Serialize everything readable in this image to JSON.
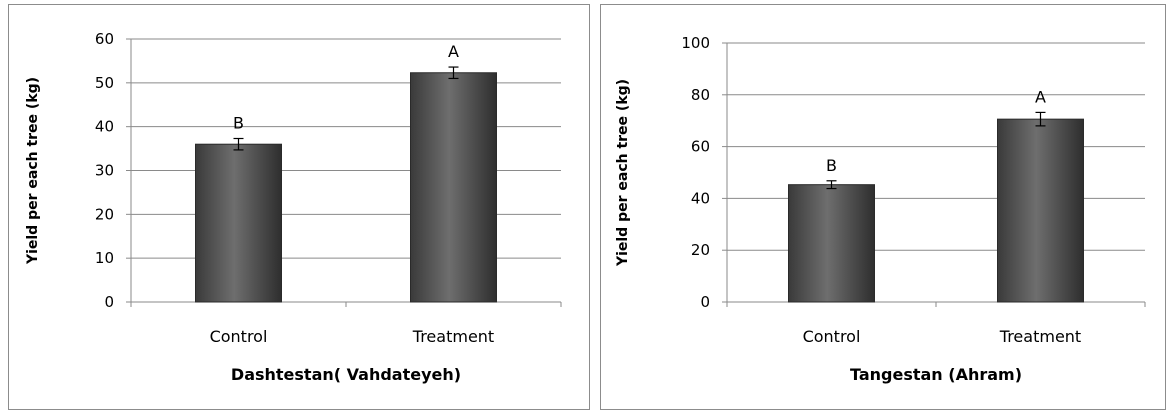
{
  "charts": [
    {
      "id": "left",
      "type": "bar",
      "categories": [
        "Control",
        "Treatment"
      ],
      "values": [
        36,
        52.3
      ],
      "errors": [
        1.3,
        1.3
      ],
      "significance": [
        "B",
        "A"
      ],
      "xlabel": "Dashtestan( Vahdateyeh)",
      "ylabel": "Yield per each tree (kg)",
      "ylim": [
        0,
        60
      ],
      "yticks": [
        0,
        10,
        20,
        30,
        40,
        50,
        60
      ],
      "grid": true,
      "legend": "none"
    },
    {
      "id": "right",
      "type": "bar",
      "categories": [
        "Control",
        "Treatment"
      ],
      "values": [
        45.3,
        70.6
      ],
      "errors": [
        1.5,
        2.6
      ],
      "significance": [
        "B",
        "A"
      ],
      "xlabel": "Tangestan (Ahram)",
      "ylabel": "Yield per each tree (kg)",
      "ylim": [
        0,
        100
      ],
      "yticks": [
        0,
        20,
        40,
        60,
        80,
        100
      ],
      "grid": true,
      "legend": "none"
    }
  ]
}
